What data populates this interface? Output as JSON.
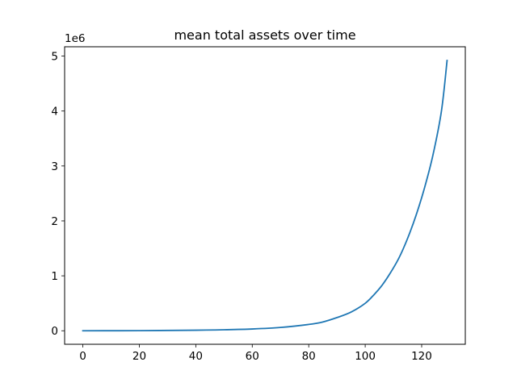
{
  "chart_data": {
    "type": "line",
    "title": "mean total assets over time",
    "xlabel": "",
    "ylabel": "",
    "y_offset_text": "1e6",
    "xlim": [
      -6.45,
      135.45
    ],
    "ylim": [
      -246000,
      5170000
    ],
    "x_ticks": [
      0,
      20,
      40,
      60,
      80,
      100,
      120
    ],
    "y_ticks": [
      0,
      1,
      2,
      3,
      4,
      5
    ],
    "y_tick_scale": 1000000,
    "grid": false,
    "legend": "none",
    "series": [
      {
        "color": "#1f77b4",
        "points": [
          [
            0,
            0
          ],
          [
            20,
            2000
          ],
          [
            40,
            10000
          ],
          [
            50,
            18000
          ],
          [
            60,
            32000
          ],
          [
            70,
            60000
          ],
          [
            80,
            115000
          ],
          [
            85,
            160000
          ],
          [
            90,
            240000
          ],
          [
            95,
            340000
          ],
          [
            100,
            500000
          ],
          [
            103,
            650000
          ],
          [
            106,
            830000
          ],
          [
            109,
            1060000
          ],
          [
            112,
            1330000
          ],
          [
            115,
            1680000
          ],
          [
            118,
            2100000
          ],
          [
            121,
            2600000
          ],
          [
            124,
            3200000
          ],
          [
            127,
            4000000
          ],
          [
            129,
            4920000
          ]
        ]
      }
    ]
  }
}
